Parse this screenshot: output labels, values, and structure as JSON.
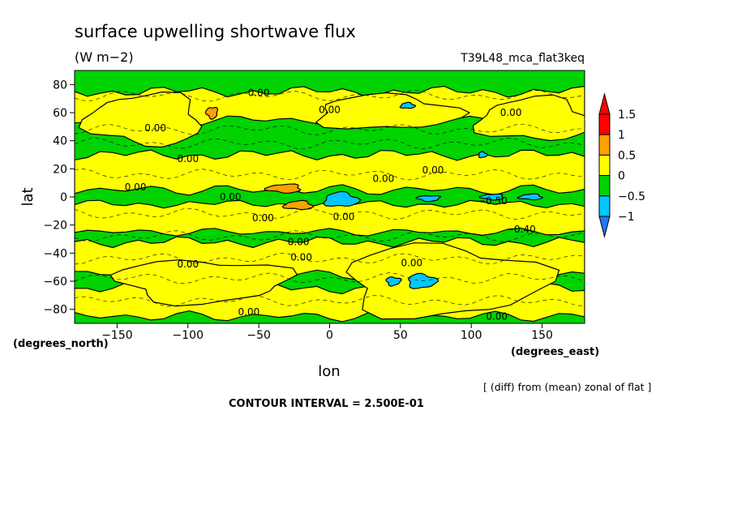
{
  "chart_data": {
    "type": "heatmap",
    "title": "surface upwelling shortwave flux",
    "units": "(W m−2)",
    "experiment": "T39L48_mca_flat3keq",
    "xlabel": "lon",
    "ylabel": "lat",
    "x_units": "(degrees_east)",
    "y_units": "(degrees_north)",
    "xlim": [
      -180,
      180
    ],
    "ylim": [
      -90,
      90
    ],
    "x_ticks": [
      -150,
      -100,
      -50,
      0,
      50,
      100,
      150
    ],
    "x_tick_labels": [
      "−150",
      "−100",
      "−50",
      "0",
      "50",
      "100",
      "150"
    ],
    "y_ticks": [
      -80,
      -60,
      -40,
      -20,
      0,
      20,
      40,
      60,
      80
    ],
    "y_tick_labels": [
      "−80",
      "−60",
      "−40",
      "−20",
      "0",
      "20",
      "40",
      "60",
      "80"
    ],
    "colorbar": {
      "levels": [
        -1,
        -0.5,
        0,
        0.5,
        1,
        1.5
      ],
      "labels": [
        "−1",
        "−0.5",
        "0",
        "0.5",
        "1",
        "1.5"
      ],
      "colors": [
        "#1e78ff",
        "#00c8ff",
        "#00d300",
        "#ffff00",
        "#ffa000",
        "#ff0000"
      ],
      "below_color": "#1e78ff",
      "above_color": "#ff0000"
    },
    "contour_labels": [
      {
        "text": "0.00",
        "lon": -50,
        "lat": 74
      },
      {
        "text": "0.00",
        "lon": 0,
        "lat": 62
      },
      {
        "text": "0.00",
        "lon": -123,
        "lat": 49
      },
      {
        "text": "0.00",
        "lon": 128,
        "lat": 60
      },
      {
        "text": "0.00",
        "lon": -100,
        "lat": 27
      },
      {
        "text": "0.00",
        "lon": -137,
        "lat": 7
      },
      {
        "text": "0.00",
        "lon": -70,
        "lat": 0
      },
      {
        "text": "0.00",
        "lon": 73,
        "lat": 19
      },
      {
        "text": "0.00",
        "lon": 38,
        "lat": 13
      },
      {
        "text": "0.00",
        "lon": -47,
        "lat": -15
      },
      {
        "text": "0.00",
        "lon": 10,
        "lat": -14
      },
      {
        "text": "−0.50",
        "lon": 115,
        "lat": -3
      },
      {
        "text": "−0.40",
        "lon": 135,
        "lat": -23
      },
      {
        "text": "0.00",
        "lon": -22,
        "lat": -32
      },
      {
        "text": "0.00",
        "lon": -100,
        "lat": -48
      },
      {
        "text": "0.00",
        "lon": -20,
        "lat": -43
      },
      {
        "text": "0.00",
        "lon": 58,
        "lat": -47
      },
      {
        "text": "0.00",
        "lon": -57,
        "lat": -82
      },
      {
        "text": "0.00",
        "lon": 118,
        "lat": -85
      }
    ],
    "field_regions": [
      {
        "level": 0,
        "shape": "band",
        "lat_min": 55,
        "lat_max": 75,
        "lon_min": -180,
        "lon_max": 180,
        "amp": 4
      },
      {
        "level": 0,
        "shape": "band",
        "lat_min": 5,
        "lat_max": 30,
        "lon_min": -180,
        "lon_max": 180,
        "amp": 4
      },
      {
        "level": 0,
        "shape": "band",
        "lat_min": -25,
        "lat_max": -5,
        "lon_min": -180,
        "lon_max": 180,
        "amp": 3
      },
      {
        "level": 0,
        "shape": "band",
        "lat_min": -55,
        "lat_max": -32,
        "lon_min": -180,
        "lon_max": 180,
        "amp": 4
      },
      {
        "level": 0,
        "shape": "band",
        "lat_min": -85,
        "lat_max": -65,
        "lon_min": -180,
        "lon_max": 180,
        "amp": 4
      },
      {
        "level": 0,
        "shape": "blob",
        "lon": -130,
        "lat": 55,
        "rx": 40,
        "ry": 18
      },
      {
        "level": 0,
        "shape": "blob",
        "lon": 145,
        "lat": 55,
        "rx": 40,
        "ry": 15
      },
      {
        "level": 0,
        "shape": "blob",
        "lon": 40,
        "lat": 60,
        "rx": 50,
        "ry": 12
      },
      {
        "level": 0,
        "shape": "blob",
        "lon": 80,
        "lat": -60,
        "rx": 70,
        "ry": 25
      },
      {
        "level": 0,
        "shape": "blob",
        "lon": -90,
        "lat": -60,
        "rx": 60,
        "ry": 15
      },
      {
        "level": 0.5,
        "shape": "blob",
        "lon": -83,
        "lat": 60,
        "rx": 4,
        "ry": 4
      },
      {
        "level": 0.5,
        "shape": "blob",
        "lon": -32,
        "lat": 6,
        "rx": 12,
        "ry": 3
      },
      {
        "level": 0.5,
        "shape": "blob",
        "lon": -22,
        "lat": -6,
        "rx": 10,
        "ry": 3
      },
      {
        "level": -1,
        "shape": "blob",
        "lon": 8,
        "lat": -2,
        "rx": 12,
        "ry": 5
      },
      {
        "level": -1,
        "shape": "blob",
        "lon": 65,
        "lat": -60,
        "rx": 10,
        "ry": 5
      },
      {
        "level": -1,
        "shape": "blob",
        "lon": 45,
        "lat": -60,
        "rx": 5,
        "ry": 3
      },
      {
        "level": -1,
        "shape": "blob",
        "lon": 70,
        "lat": -1,
        "rx": 8,
        "ry": 2
      },
      {
        "level": -1,
        "shape": "blob",
        "lon": 115,
        "lat": 0,
        "rx": 8,
        "ry": 2
      },
      {
        "level": -1,
        "shape": "blob",
        "lon": 142,
        "lat": 0,
        "rx": 8,
        "ry": 2
      },
      {
        "level": -1,
        "shape": "blob",
        "lon": 55,
        "lat": 65,
        "rx": 5,
        "ry": 2
      },
      {
        "level": -1,
        "shape": "blob",
        "lon": 108,
        "lat": 30,
        "rx": 3,
        "ry": 2
      }
    ]
  },
  "footer": {
    "source": "[ (diff) from (mean) zonal of flat ]",
    "contour_interval": "CONTOUR INTERVAL = 2.500E-01"
  }
}
